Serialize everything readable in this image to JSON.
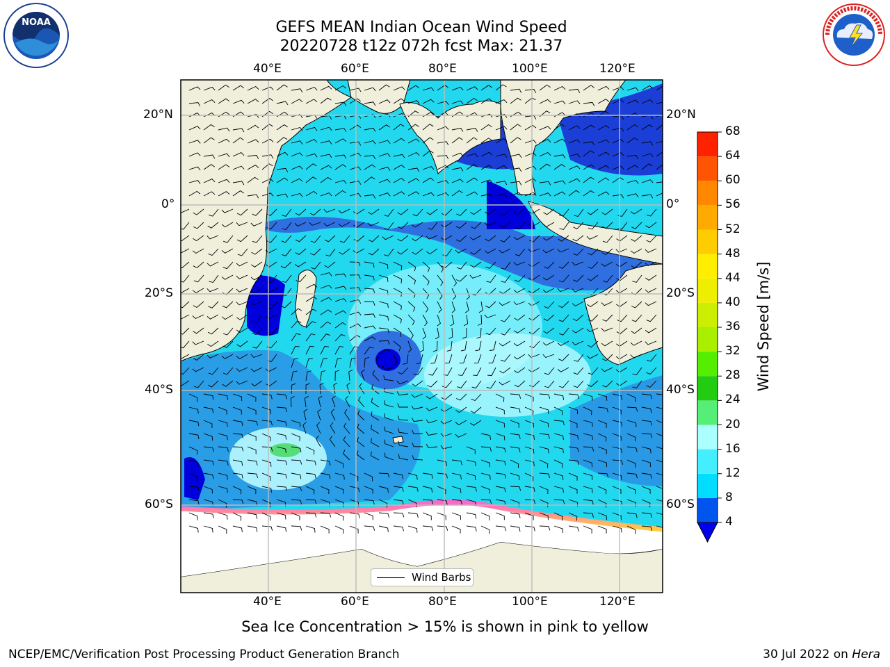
{
  "header": {
    "title_line1": "GEFS MEAN Indian Ocean Wind Speed",
    "title_line2": "20220728 t12z 072h fcst   Max: 21.37"
  },
  "logos": {
    "left": {
      "name": "noaa-logo",
      "text": "NOAA"
    },
    "right": {
      "name": "national-weather-service-logo",
      "text": "NATIONAL WEATHER SERVICE"
    }
  },
  "map": {
    "longitude_labels": [
      "40°E",
      "60°E",
      "80°E",
      "100°E",
      "120°E"
    ],
    "latitude_labels_left": [
      "20°N",
      "0°",
      "20°S",
      "40°S",
      "60°S"
    ],
    "latitude_labels_right": [
      "20°N",
      "0°",
      "20°S",
      "40°S",
      "60°S"
    ],
    "legend_label": "Wind Barbs"
  },
  "colorbar": {
    "title": "Wind Speed [m/s]",
    "ticks": [
      "4",
      "8",
      "12",
      "16",
      "20",
      "24",
      "28",
      "32",
      "36",
      "40",
      "44",
      "48",
      "52",
      "56",
      "60",
      "64",
      "68"
    ],
    "colors": [
      "#0055ee",
      "#00ddff",
      "#44eeff",
      "#aaffff",
      "#55ee77",
      "#22cc11",
      "#55ee00",
      "#aaee00",
      "#ccee00",
      "#eeee00",
      "#ffee00",
      "#ffcc00",
      "#ffaa00",
      "#ff8800",
      "#ff5500",
      "#ff2200"
    ],
    "extend_color": "#0000ee"
  },
  "colors": {
    "land": "#efefdc",
    "sea_ice": "#ff66cc",
    "ice_edge": "#ffcc44",
    "grid": "#bbbbbb"
  },
  "footer": {
    "caption": "Sea Ice Concentration > 15% is shown in pink to yellow",
    "credit": "NCEP/EMC/Verification Post Processing Product Generation Branch",
    "date": "30 Jul 2022 on ",
    "machine": "Hera"
  }
}
